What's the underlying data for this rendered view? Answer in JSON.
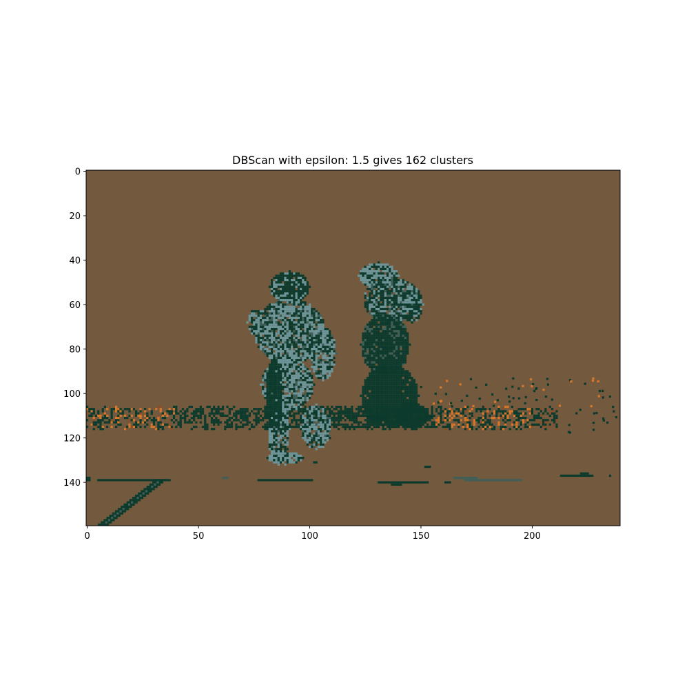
{
  "chart_data": {
    "type": "heatmap",
    "title": "DBScan with epsilon: 1.5 gives 162 clusters",
    "xlabel": "",
    "ylabel": "",
    "image_size": {
      "width": 240,
      "height": 160
    },
    "xlim": [
      -0.5,
      239.5
    ],
    "ylim": [
      159.5,
      -0.5
    ],
    "x_ticks": [
      0,
      50,
      100,
      150,
      200
    ],
    "y_ticks": [
      0,
      20,
      40,
      60,
      80,
      100,
      120,
      140
    ],
    "x_tick_labels": [
      "0",
      "50",
      "100",
      "150",
      "200"
    ],
    "y_tick_labels": [
      "0",
      "20",
      "40",
      "60",
      "80",
      "100",
      "120",
      "140"
    ],
    "grid": false,
    "colors": {
      "background_cluster": "#735a3e",
      "dark_cluster": "#0c3a2c",
      "light_cluster": "#6e969a",
      "orange_cluster": "#d8772a",
      "mid_cluster": "#3f5f58",
      "reddish_cluster": "#8a4f2a"
    }
  }
}
